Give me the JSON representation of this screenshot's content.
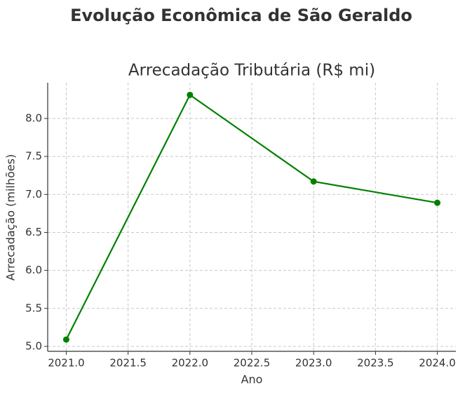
{
  "chart_data": {
    "type": "line",
    "suptitle": "Evolução Econômica de São Geraldo",
    "title": "Arrecadação Tributária (R$ mi)",
    "x_label": "Ano",
    "y_label": "Arrecadação (milhões)",
    "x": [
      2021,
      2022,
      2023,
      2024
    ],
    "series": [
      {
        "name": "Arrecadação",
        "color": "#008000",
        "values": [
          5.09,
          8.31,
          7.17,
          6.89
        ]
      }
    ],
    "xlim": [
      2020.85,
      2024.15
    ],
    "xticks": [
      {
        "value": 2021,
        "label": "2021.0"
      },
      2021.5,
      {
        "value": 2022,
        "label": "2022.0"
      },
      2022.5,
      {
        "value": 2023,
        "label": "2023.0"
      },
      2023.5,
      {
        "value": 2024,
        "label": "2024.0"
      }
    ],
    "ylim": [
      4.935,
      8.47
    ],
    "yticks": [
      {
        "value": 5,
        "label": "5.0"
      },
      5.5,
      {
        "value": 6,
        "label": "6.0"
      },
      6.5,
      {
        "value": 7,
        "label": "7.0"
      },
      7.5,
      {
        "value": 8,
        "label": "8.0"
      }
    ],
    "grid": true,
    "legend": false
  }
}
